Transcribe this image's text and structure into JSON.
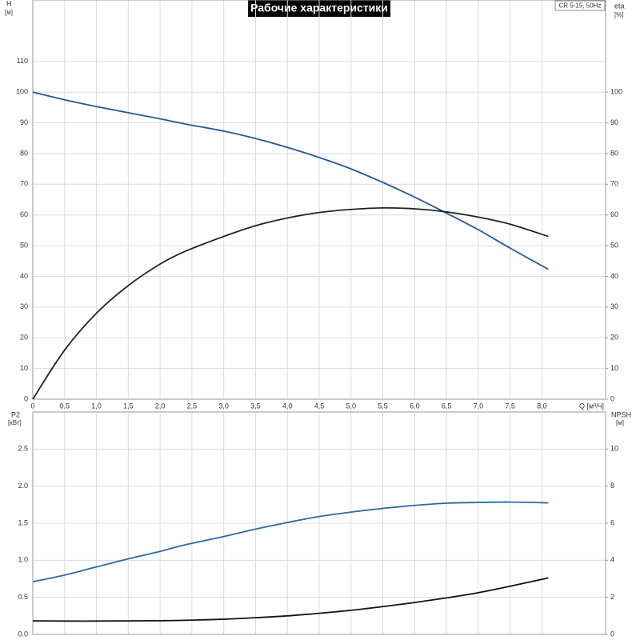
{
  "chart_data": [
    {
      "type": "line",
      "title": "Рабочие характеристики",
      "annotation": "CR 5-15, 50Hz",
      "xlabel": "Q [м³/ч]",
      "ylabel": "H",
      "yunit": "[м]",
      "y2label": "eta",
      "y2unit": "[%]",
      "x": [
        0,
        0.5,
        1,
        1.5,
        2,
        2.4,
        3,
        3.5,
        4,
        4.5,
        5,
        5.5,
        6,
        6.5,
        7,
        7.5,
        8.1
      ],
      "xlim": [
        0,
        9
      ],
      "xticks": [
        0,
        {
          "value": 0.5,
          "label": "0,5"
        },
        {
          "value": 1,
          "label": "1,0"
        },
        {
          "value": 1.5,
          "label": "1,5"
        },
        {
          "value": 2,
          "label": "2,0"
        },
        {
          "value": 2.5,
          "label": "2,5"
        },
        {
          "value": 3,
          "label": "3,0"
        },
        {
          "value": 3.5,
          "label": "3,5"
        },
        {
          "value": 4,
          "label": "4,0"
        },
        {
          "value": 4.5,
          "label": "4,5"
        },
        {
          "value": 5,
          "label": "5,0"
        },
        {
          "value": 5.5,
          "label": "5,5"
        },
        {
          "value": 6,
          "label": "6,0"
        },
        {
          "value": 6.5,
          "label": "6,5"
        },
        {
          "value": 7,
          "label": "7,0"
        },
        {
          "value": 7.5,
          "label": "7,5"
        },
        {
          "value": 8,
          "label": "8,0"
        }
      ],
      "ylim": [
        0,
        130
      ],
      "yticks": [
        0,
        10,
        20,
        30,
        40,
        50,
        60,
        70,
        80,
        90,
        100,
        110
      ],
      "y2lim": [
        0,
        130
      ],
      "y2ticks": [
        0,
        10,
        20,
        30,
        40,
        50,
        60,
        70,
        80,
        90,
        100
      ],
      "grid": true,
      "series": [
        {
          "color": "#1f5a96",
          "axis": "y",
          "values": [
            100,
            97.5,
            95.3,
            93.3,
            91.3,
            89.6,
            87.3,
            84.9,
            82,
            78.7,
            75,
            70.6,
            65.8,
            60.6,
            55.2,
            49.2,
            42.3
          ]
        },
        {
          "color": "#222222",
          "axis": "y2",
          "values": [
            0,
            16,
            28,
            37,
            44,
            48.2,
            53,
            56.5,
            59,
            60.8,
            61.8,
            62.3,
            62,
            61,
            59.3,
            57,
            53
          ]
        }
      ]
    },
    {
      "type": "line",
      "ylabel": "P2",
      "yunit": "[кВт]",
      "y2label": "NPSH",
      "y2unit": "[м]",
      "x": [
        0,
        0.5,
        1,
        1.5,
        2,
        2.4,
        3,
        3.5,
        4,
        4.5,
        5,
        5.5,
        6,
        6.5,
        7,
        7.5,
        8.1
      ],
      "xlim": [
        0,
        9
      ],
      "ylim": [
        0,
        3
      ],
      "yticks": [
        {
          "value": 0,
          "label": "0.0"
        },
        0.5,
        {
          "value": 1,
          "label": "1.0"
        },
        1.5,
        {
          "value": 2,
          "label": "2.0"
        },
        2.5
      ],
      "y2lim": [
        0,
        12
      ],
      "y2ticks": [
        0,
        2,
        4,
        6,
        8,
        10
      ],
      "grid": true,
      "series": [
        {
          "color": "#2a6aa8",
          "axis": "y",
          "values": [
            0.71,
            0.8,
            0.91,
            1.02,
            1.12,
            1.21,
            1.32,
            1.42,
            1.51,
            1.59,
            1.65,
            1.7,
            1.74,
            1.77,
            1.78,
            1.785,
            1.775
          ]
        },
        {
          "color": "#111111",
          "axis": "y2",
          "values": [
            0.73,
            0.72,
            0.72,
            0.73,
            0.74,
            0.76,
            0.82,
            0.9,
            1.0,
            1.14,
            1.3,
            1.5,
            1.72,
            1.97,
            2.25,
            2.6,
            3.05
          ]
        }
      ]
    }
  ]
}
